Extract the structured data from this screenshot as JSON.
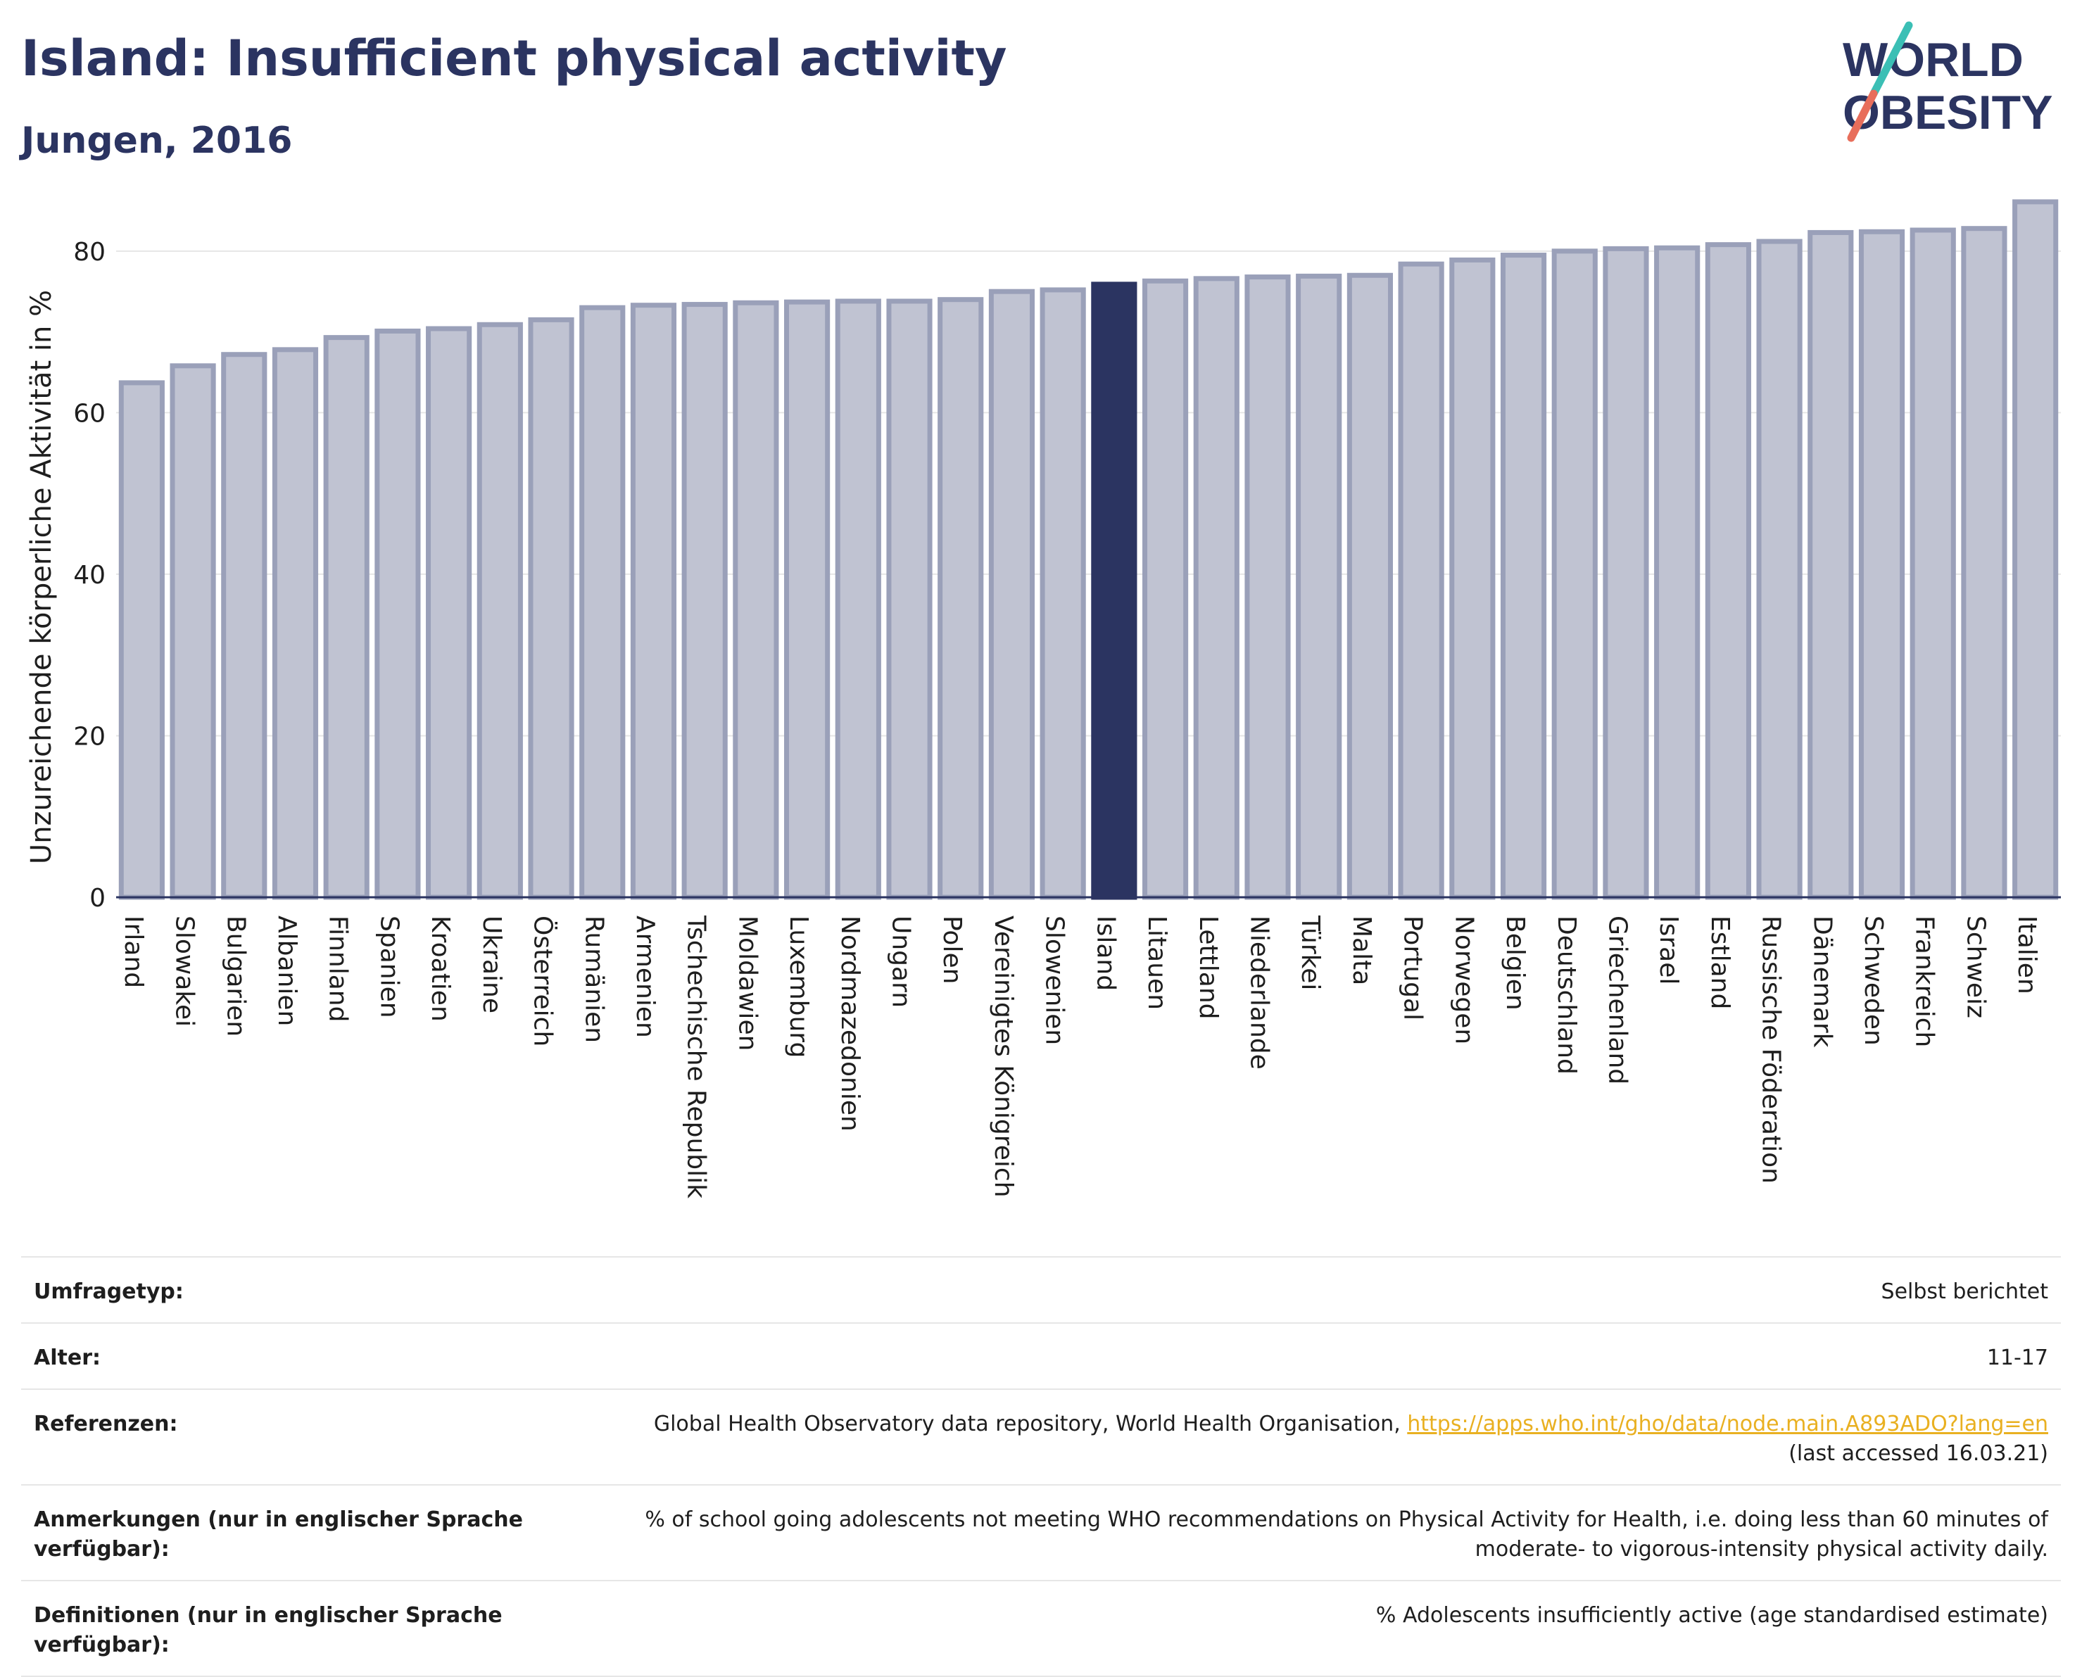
{
  "header": {
    "title": "Island: Insufficient physical activity",
    "subtitle": "Jungen, 2016"
  },
  "logo": {
    "line1": "WORLD",
    "line2": "OBESITY"
  },
  "colors": {
    "highlight": "#2b3461",
    "bar_fill": "#c0c3d2",
    "bar_stroke": "#9aa0b9",
    "grid": "#e6e6e6",
    "link": "#e9b021"
  },
  "chart_data": {
    "type": "bar",
    "title": "Island: Insufficient physical activity",
    "subtitle": "Jungen, 2016",
    "ylabel": "Unzureichende körperliche Aktivität in %",
    "xlabel": "",
    "ylim": [
      0,
      88
    ],
    "yticks": [
      0,
      20,
      40,
      60,
      80
    ],
    "grid": true,
    "highlight": "Island",
    "categories": [
      "Irland",
      "Slowakei",
      "Bulgarien",
      "Albanien",
      "Finnland",
      "Spanien",
      "Kroatien",
      "Ukraine",
      "Österreich",
      "Rumänien",
      "Armenien",
      "Tschechische Republik",
      "Moldawien",
      "Luxemburg",
      "Nordmazedonien",
      "Ungarn",
      "Polen",
      "Vereinigtes Königreich",
      "Slowenien",
      "Island",
      "Litauen",
      "Lettland",
      "Niederlande",
      "Türkei",
      "Malta",
      "Portugal",
      "Norwegen",
      "Belgien",
      "Deutschland",
      "Griechenland",
      "Israel",
      "Estland",
      "Russische Föderation",
      "Dänemark",
      "Schweden",
      "Frankreich",
      "Schweiz",
      "Italien"
    ],
    "values": [
      63.7,
      65.8,
      67.2,
      67.8,
      69.3,
      70.1,
      70.4,
      70.9,
      71.5,
      73.0,
      73.3,
      73.4,
      73.6,
      73.7,
      73.8,
      73.8,
      74.0,
      75.0,
      75.2,
      75.9,
      76.3,
      76.6,
      76.8,
      76.9,
      77.0,
      78.4,
      78.9,
      79.5,
      80.0,
      80.3,
      80.4,
      80.8,
      81.2,
      82.3,
      82.4,
      82.6,
      82.8,
      86.1
    ]
  },
  "meta": {
    "rows": [
      {
        "label": "Umfragetyp:",
        "value": "Selbst berichtet"
      },
      {
        "label": "Alter:",
        "value": "11-17"
      },
      {
        "label": "Referenzen:",
        "value": "Global Health Observatory data repository, World Health Organisation, ",
        "link": "https://apps.who.int/gho/data/node.main.A893ADO?lang=en",
        "value2": "(last accessed 16.03.21)"
      },
      {
        "label": "Anmerkungen (nur in englischer Sprache verfügbar):",
        "value": "% of school going adolescents not meeting WHO recommendations on Physical Activity for Health, i.e. doing less than 60 minutes of moderate- to vigorous-intensity physical activity daily."
      },
      {
        "label": "Definitionen (nur in englischer Sprache verfügbar):",
        "value": "% Adolescents insufficiently active (age standardised estimate)"
      }
    ]
  }
}
